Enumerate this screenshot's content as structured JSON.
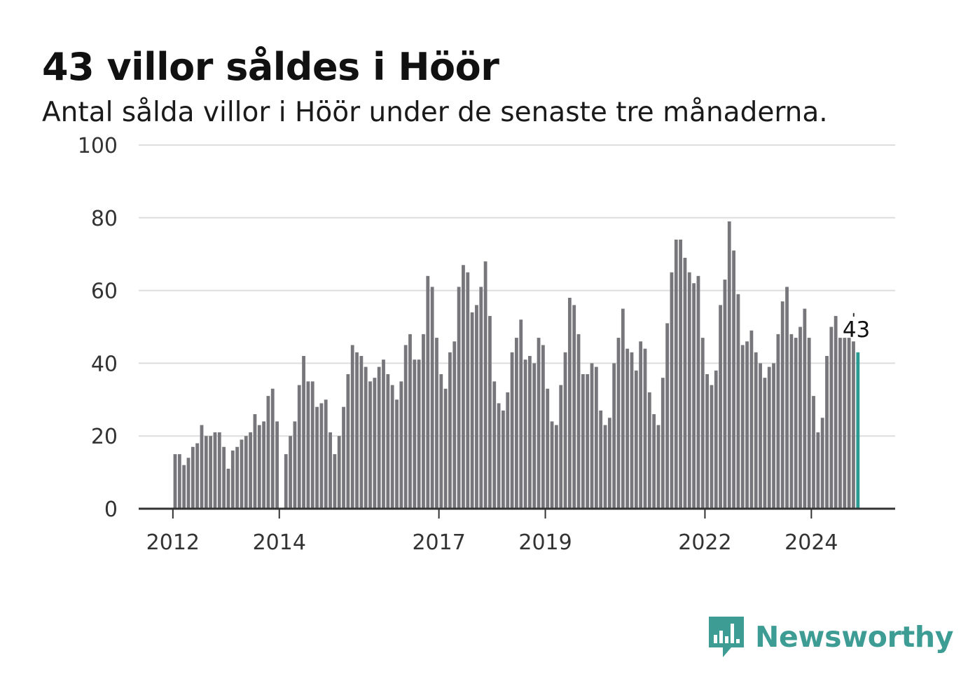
{
  "header": {
    "title": "43 villor såldes i Höör",
    "subtitle": "Antal sålda villor i Höör under de senaste tre månaderna."
  },
  "colors": {
    "bar": "#77767b",
    "highlight": "#2a9b93",
    "grid": "#dddddd",
    "axis": "#333333"
  },
  "chart_data": {
    "type": "bar",
    "ylim": [
      0,
      100
    ],
    "yticks": [
      0,
      20,
      40,
      60,
      80,
      100
    ],
    "xticks": [
      "2012",
      "2014",
      "2017",
      "2019",
      "2022",
      "2024"
    ],
    "x_start": "2012-01",
    "values": [
      15,
      15,
      12,
      14,
      17,
      18,
      23,
      20,
      20,
      21,
      21,
      17,
      11,
      16,
      17,
      19,
      20,
      21,
      26,
      23,
      24,
      31,
      33,
      24,
      0,
      15,
      20,
      24,
      34,
      42,
      35,
      35,
      28,
      29,
      30,
      21,
      15,
      20,
      28,
      37,
      45,
      43,
      42,
      39,
      35,
      36,
      39,
      41,
      37,
      34,
      30,
      35,
      45,
      48,
      41,
      41,
      48,
      64,
      61,
      47,
      37,
      33,
      43,
      46,
      61,
      67,
      65,
      54,
      56,
      61,
      68,
      53,
      35,
      29,
      27,
      32,
      43,
      47,
      52,
      41,
      42,
      40,
      47,
      45,
      33,
      24,
      23,
      34,
      43,
      58,
      56,
      48,
      37,
      37,
      40,
      39,
      27,
      23,
      25,
      40,
      47,
      55,
      44,
      43,
      38,
      46,
      44,
      32,
      26,
      23,
      36,
      51,
      65,
      74,
      74,
      69,
      65,
      62,
      64,
      47,
      37,
      34,
      38,
      56,
      63,
      79,
      71,
      59,
      45,
      46,
      49,
      43,
      40,
      36,
      39,
      40,
      48,
      57,
      61,
      48,
      47,
      50,
      55,
      47,
      31,
      21,
      25,
      42,
      50,
      53,
      47,
      47,
      47,
      46,
      43
    ],
    "highlight_label": "43"
  },
  "brand": {
    "name": "Newsworthy",
    "logo_icon": "newsworthy-logo-icon"
  }
}
